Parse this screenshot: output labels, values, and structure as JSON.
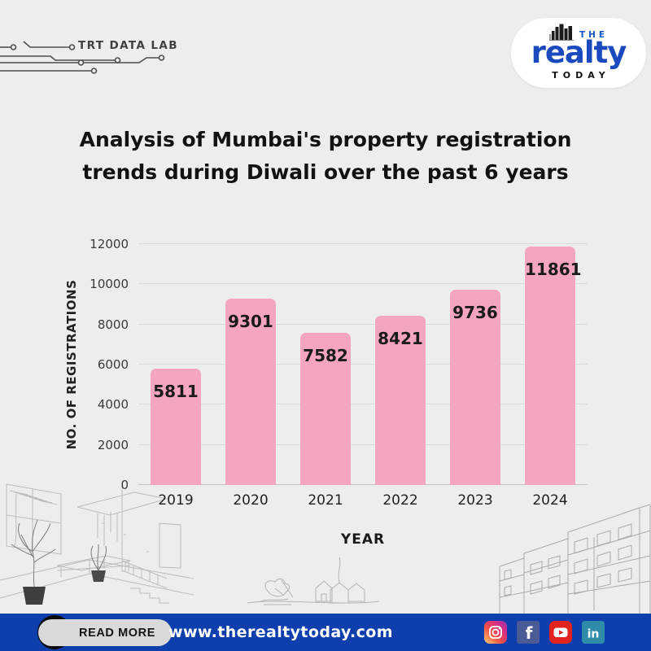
{
  "header": {
    "data_lab_label": "TRT DATA LAB",
    "logo": {
      "the": "THE",
      "realty": "realty",
      "today": "TODAY"
    }
  },
  "title": {
    "line1": "Analysis of Mumbai's property registration",
    "line2": "trends during Diwali over the past 6 years"
  },
  "chart_data": {
    "type": "bar",
    "categories": [
      "2019",
      "2020",
      "2021",
      "2022",
      "2023",
      "2024"
    ],
    "values": [
      5811,
      9301,
      7582,
      8421,
      9736,
      11861
    ],
    "title": "Analysis of Mumbai's property registration trends during Diwali over the past 6 years",
    "xlabel": "YEAR",
    "ylabel": "NO. OF REGISTRATIONS",
    "ylim": [
      0,
      12000
    ],
    "yticks": [
      0,
      2000,
      4000,
      6000,
      8000,
      10000,
      12000
    ],
    "grid": true,
    "legend": "none",
    "bar_color": "#f6a5c1",
    "value_label_color": "#1b1b1b"
  },
  "footer": {
    "read_more_label": "READ MORE",
    "url": "www.therealtytoday.com",
    "social": [
      {
        "name": "instagram",
        "glyph": ""
      },
      {
        "name": "facebook",
        "glyph": "f"
      },
      {
        "name": "youtube",
        "glyph": ""
      },
      {
        "name": "linkedin",
        "glyph": "in"
      }
    ]
  },
  "colors": {
    "background": "#ecedec",
    "bar_pink": "#f6a5c1",
    "footer_blue": "#0f3fad",
    "logo_blue": "#1a4abe",
    "gridline": "#dadada"
  }
}
